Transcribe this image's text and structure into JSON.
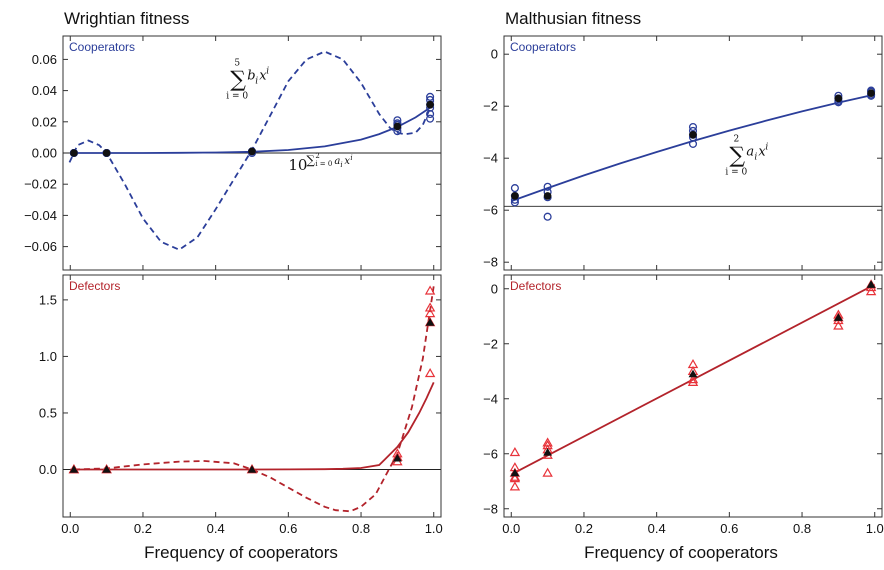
{
  "chart_data": {
    "type": "scatter",
    "colors": {
      "cooperators": "#2b3e9a",
      "defectors": "#b3232b",
      "defector_markers": "#e8333a",
      "mean": "#111111"
    },
    "columns": [
      {
        "title": "Wrightian fitness",
        "xlabel": "Frequency of cooperators"
      },
      {
        "title": "Malthusian fitness",
        "xlabel": "Frequency of cooperators"
      }
    ],
    "panels": [
      {
        "id": "wright-coop",
        "label": "Cooperators",
        "group": "cooperators",
        "xlim": [
          -0.02,
          1.02
        ],
        "ylim": [
          -0.075,
          0.075
        ],
        "yticks": [
          -0.06,
          -0.04,
          -0.02,
          0.0,
          0.02,
          0.04,
          0.06
        ],
        "ytick_labels": [
          "−0.06",
          "−0.04",
          "−0.02",
          "0.00",
          "0.02",
          "0.04",
          "0.06"
        ],
        "xticks": [
          0.0,
          0.2,
          0.4,
          0.6,
          0.8,
          1.0
        ],
        "hline": 0.0,
        "replicates": {
          "x": [
            0.01,
            0.01,
            0.01,
            0.01,
            0.1,
            0.1,
            0.1,
            0.1,
            0.5,
            0.5,
            0.5,
            0.5,
            0.9,
            0.9,
            0.9,
            0.9,
            0.9,
            0.99,
            0.99,
            0.99,
            0.99,
            0.99,
            0.99
          ],
          "y": [
            0.0,
            0.0,
            0.0,
            0.0,
            0.0,
            0.0,
            0.0,
            0.0,
            0.001,
            0.001,
            0.0,
            0.001,
            0.021,
            0.019,
            0.016,
            0.014,
            0.018,
            0.034,
            0.031,
            0.029,
            0.025,
            0.022,
            0.036
          ]
        },
        "means": {
          "x": [
            0.01,
            0.1,
            0.5,
            0.9,
            0.99
          ],
          "y": [
            0.0,
            0.0,
            0.001,
            0.017,
            0.031
          ]
        },
        "fits": [
          {
            "kind": "solid",
            "x": [
              0.0,
              0.1,
              0.2,
              0.3,
              0.4,
              0.5,
              0.6,
              0.7,
              0.8,
              0.85,
              0.9,
              0.95,
              1.0
            ],
            "y": [
              0.0,
              0.0,
              0.0,
              0.0001,
              0.0003,
              0.0008,
              0.0019,
              0.0042,
              0.0086,
              0.0121,
              0.0167,
              0.0228,
              0.0306
            ]
          },
          {
            "kind": "dashed",
            "x": [
              -0.002,
              0.02,
              0.05,
              0.08,
              0.1,
              0.15,
              0.2,
              0.25,
              0.3,
              0.35,
              0.4,
              0.45,
              0.5,
              0.55,
              0.6,
              0.65,
              0.7,
              0.75,
              0.8,
              0.85,
              0.88,
              0.9,
              0.92,
              0.95,
              0.97,
              1.0
            ],
            "y": [
              -0.006,
              0.005,
              0.008,
              0.005,
              0.0,
              -0.02,
              -0.042,
              -0.057,
              -0.062,
              -0.054,
              -0.036,
              -0.017,
              0.002,
              0.024,
              0.046,
              0.06,
              0.065,
              0.06,
              0.045,
              0.025,
              0.016,
              0.013,
              0.012,
              0.013,
              0.018,
              0.034
            ]
          }
        ],
        "annotations": [
          {
            "kind": "sum",
            "lower": "i = 0",
            "upper": "5",
            "body": "b",
            "sub": "i",
            "var": "x",
            "sup": "i",
            "x": 0.44,
            "y": 0.047
          },
          {
            "kind": "exp",
            "base": "10",
            "sum": "∑",
            "lower": "i = 0",
            "upper": "2",
            "body": "a",
            "sub": "i",
            "var": "x",
            "sup": "i",
            "x": 0.6,
            "y": -0.011
          }
        ]
      },
      {
        "id": "malthus-coop",
        "label": "Cooperators",
        "group": "cooperators",
        "xlim": [
          -0.02,
          1.02
        ],
        "ylim": [
          -8.3,
          0.7
        ],
        "yticks": [
          -8,
          -6,
          -4,
          -2,
          0
        ],
        "ytick_labels": [
          "−8",
          "−6",
          "−4",
          "−2",
          "0"
        ],
        "xticks": [
          0.0,
          0.2,
          0.4,
          0.6,
          0.8,
          1.0
        ],
        "hline": -5.85,
        "replicates": {
          "x": [
            0.01,
            0.01,
            0.01,
            0.01,
            0.1,
            0.1,
            0.1,
            0.1,
            0.5,
            0.5,
            0.5,
            0.5,
            0.5,
            0.9,
            0.9,
            0.9,
            0.9,
            0.99,
            0.99,
            0.99,
            0.99
          ],
          "y": [
            -5.15,
            -5.45,
            -5.6,
            -5.7,
            -5.1,
            -5.3,
            -5.5,
            -6.25,
            -2.8,
            -2.95,
            -3.1,
            -3.2,
            -3.45,
            -1.6,
            -1.7,
            -1.8,
            -1.85,
            -1.4,
            -1.45,
            -1.55,
            -1.6
          ]
        },
        "means": {
          "x": [
            0.01,
            0.1,
            0.5,
            0.9,
            0.99
          ],
          "y": [
            -5.45,
            -5.45,
            -3.1,
            -1.7,
            -1.5
          ]
        },
        "fits": [
          {
            "kind": "solid",
            "x": [
              0.0,
              0.1,
              0.2,
              0.3,
              0.4,
              0.5,
              0.6,
              0.7,
              0.8,
              0.9,
              1.0
            ],
            "y": [
              -5.65,
              -5.15,
              -4.66,
              -4.2,
              -3.76,
              -3.34,
              -2.94,
              -2.56,
              -2.2,
              -1.86,
              -1.55
            ]
          }
        ],
        "annotations": [
          {
            "kind": "sum",
            "lower": "i = 0",
            "upper": "2",
            "body": "a",
            "sub": "i",
            "var": "x",
            "sup": "i",
            "x": 0.6,
            "y": -3.9
          }
        ]
      },
      {
        "id": "wright-def",
        "label": "Defectors",
        "group": "defectors",
        "xlim": [
          -0.02,
          1.02
        ],
        "ylim": [
          -0.42,
          1.72
        ],
        "yticks": [
          0.0,
          0.5,
          1.0,
          1.5
        ],
        "ytick_labels": [
          "0.0",
          "0.5",
          "1.0",
          "1.5"
        ],
        "xticks": [
          0.0,
          0.2,
          0.4,
          0.6,
          0.8,
          1.0
        ],
        "xtick_labels": [
          "0.0",
          "0.2",
          "0.4",
          "0.6",
          "0.8",
          "1.0"
        ],
        "hline": 0.0,
        "replicates": {
          "x": [
            0.01,
            0.01,
            0.01,
            0.1,
            0.1,
            0.5,
            0.5,
            0.9,
            0.9,
            0.9,
            0.99,
            0.99,
            0.99,
            0.99,
            0.99
          ],
          "y": [
            0.0,
            0.0,
            0.0,
            0.0,
            0.0,
            0.0,
            0.0,
            0.07,
            0.11,
            0.14,
            1.58,
            1.43,
            1.38,
            0.85,
            1.3
          ]
        },
        "means": {
          "x": [
            0.01,
            0.1,
            0.5,
            0.9,
            0.99
          ],
          "y": [
            0.0,
            0.0,
            0.0,
            0.1,
            1.3
          ]
        },
        "fits": [
          {
            "kind": "solid",
            "x": [
              0.0,
              0.2,
              0.4,
              0.5,
              0.6,
              0.7,
              0.75,
              0.8,
              0.85,
              0.9,
              0.93,
              0.96,
              0.98,
              1.0
            ],
            "y": [
              0.0,
              0.0,
              0.0,
              0.0,
              0.001,
              0.003,
              0.006,
              0.013,
              0.04,
              0.2,
              0.33,
              0.5,
              0.63,
              0.77
            ]
          },
          {
            "kind": "dashed",
            "x": [
              0.01,
              0.1,
              0.2,
              0.3,
              0.37,
              0.45,
              0.5,
              0.55,
              0.6,
              0.65,
              0.7,
              0.73,
              0.77,
              0.8,
              0.84,
              0.88,
              0.9,
              0.94,
              0.97,
              1.0
            ],
            "y": [
              0.0,
              0.01,
              0.045,
              0.07,
              0.075,
              0.055,
              0.0,
              -0.07,
              -0.16,
              -0.25,
              -0.33,
              -0.36,
              -0.37,
              -0.33,
              -0.22,
              0.02,
              0.14,
              0.55,
              0.98,
              1.62
            ]
          }
        ]
      },
      {
        "id": "malthus-def",
        "label": "Defectors",
        "group": "defectors",
        "xlim": [
          -0.02,
          1.02
        ],
        "ylim": [
          -8.3,
          0.5
        ],
        "yticks": [
          -8,
          -6,
          -4,
          -2,
          0
        ],
        "ytick_labels": [
          "−8",
          "−6",
          "−4",
          "−2",
          "0"
        ],
        "xticks": [
          0.0,
          0.2,
          0.4,
          0.6,
          0.8,
          1.0
        ],
        "xtick_labels": [
          "0.0",
          "0.2",
          "0.4",
          "0.6",
          "0.8",
          "1.0"
        ],
        "replicates": {
          "x": [
            0.01,
            0.01,
            0.01,
            0.01,
            0.01,
            0.01,
            0.1,
            0.1,
            0.1,
            0.1,
            0.1,
            0.5,
            0.5,
            0.5,
            0.5,
            0.9,
            0.9,
            0.9,
            0.9,
            0.99,
            0.99,
            0.99
          ],
          "y": [
            -5.95,
            -6.5,
            -6.7,
            -6.85,
            -6.9,
            -7.2,
            -5.6,
            -5.7,
            -5.85,
            -6.05,
            -6.7,
            -2.75,
            -3.0,
            -3.3,
            -3.4,
            -0.95,
            -1.05,
            -1.15,
            -1.35,
            0.15,
            0.05,
            -0.1
          ]
        },
        "means": {
          "x": [
            0.01,
            0.1,
            0.5,
            0.9,
            0.99
          ],
          "y": [
            -6.7,
            -5.95,
            -3.1,
            -1.05,
            0.15
          ]
        },
        "fits": [
          {
            "kind": "solid",
            "x": [
              0.0,
              1.0
            ],
            "y": [
              -6.75,
              0.15
            ]
          }
        ]
      }
    ]
  }
}
